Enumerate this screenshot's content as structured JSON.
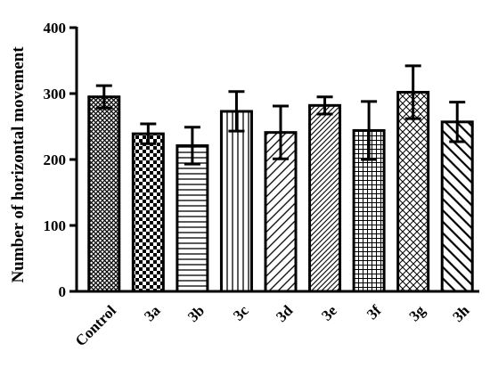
{
  "chart_data": {
    "type": "bar",
    "title": "",
    "xlabel": "",
    "ylabel": "Number of horizontal movement",
    "ylim": [
      0,
      400
    ],
    "yticks": [
      0,
      100,
      200,
      300,
      400
    ],
    "grid": false,
    "categories": [
      "Control",
      "3a",
      "3b",
      "3c",
      "3d",
      "3e",
      "3f",
      "3g",
      "3h"
    ],
    "values": [
      295,
      239,
      221,
      273,
      241,
      282,
      244,
      302,
      257
    ],
    "errors": [
      17,
      15,
      28,
      30,
      40,
      13,
      44,
      40,
      30
    ],
    "patterns": [
      "crosshatch-fine",
      "checker",
      "horizontal-lines",
      "vertical-lines",
      "diagonal-up",
      "diagonal-up-dense",
      "grid",
      "diagonal-cross",
      "diagonal-down"
    ]
  }
}
